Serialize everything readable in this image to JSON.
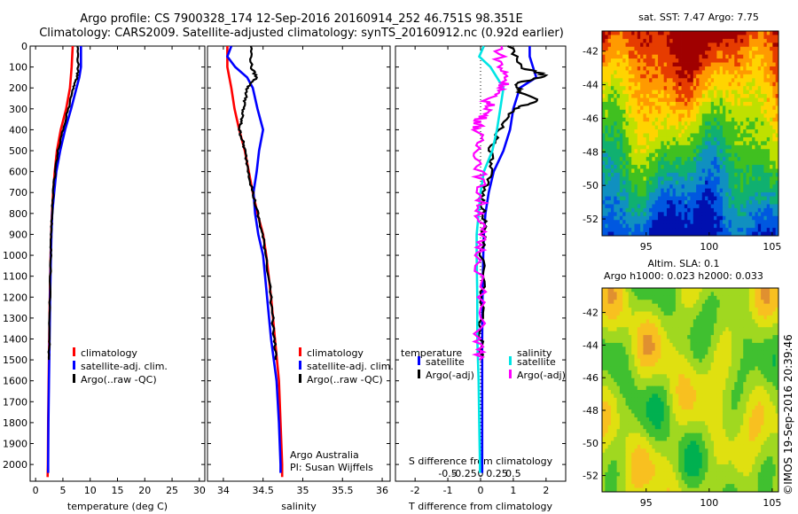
{
  "header": {
    "line1": "Argo profile: CS 7900328_174 12-Sep-2016 20160914_252 46.751S 98.351E",
    "line2": "Climatology: CARS2009. Satellite-adjusted climatology: synTS_20160912.nc (0.92d earlier)"
  },
  "colors": {
    "climatology": "#ff0000",
    "satellite": "#0000ff",
    "argo": "#000000",
    "salinity_sat": "#00e5e5",
    "salinity_argo": "#ff00ff"
  },
  "chart_data": [
    {
      "id": "temperature",
      "type": "line",
      "xlabel": "temperature (deg C)",
      "ylabel": "",
      "xlim": [
        -1,
        31
      ],
      "ylim": [
        2080,
        0
      ],
      "xticks": [
        0,
        5,
        10,
        15,
        20,
        25,
        30
      ],
      "yticks": [
        0,
        100,
        200,
        300,
        400,
        500,
        600,
        700,
        800,
        900,
        1000,
        1100,
        1200,
        1300,
        1400,
        1500,
        1600,
        1700,
        1800,
        1900,
        2000
      ],
      "legend": {
        "position": "lower-middle",
        "entries": [
          "climatology",
          "satellite-adj. clim.",
          "Argo(..raw -QC)"
        ]
      },
      "series": [
        {
          "name": "climatology",
          "color": "#ff0000",
          "depth": [
            0,
            100,
            200,
            300,
            400,
            500,
            600,
            700,
            800,
            900,
            1000,
            1200,
            1400,
            1600,
            1800,
            2000,
            2060
          ],
          "values": [
            6.8,
            6.6,
            6.3,
            5.6,
            4.6,
            3.9,
            3.5,
            3.2,
            3.0,
            2.85,
            2.75,
            2.6,
            2.5,
            2.4,
            2.3,
            2.25,
            2.2
          ]
        },
        {
          "name": "satellite-adj. clim.",
          "color": "#0000ff",
          "depth": [
            0,
            100,
            150,
            200,
            300,
            400,
            500,
            600,
            700,
            800,
            900,
            1000,
            1200,
            1400,
            1600,
            1800,
            2000,
            2040
          ],
          "values": [
            8.3,
            8.3,
            8.0,
            7.5,
            6.5,
            5.4,
            4.5,
            3.8,
            3.4,
            3.05,
            2.9,
            2.8,
            2.65,
            2.55,
            2.45,
            2.35,
            2.3,
            2.3
          ]
        },
        {
          "name": "Argo(..raw -QC)",
          "color": "#000000",
          "depth": [
            0,
            100,
            150,
            200,
            300,
            400,
            500,
            600,
            700,
            800,
            900,
            1000,
            1200,
            1400,
            1500
          ],
          "values": [
            7.7,
            7.8,
            7.6,
            6.9,
            6.0,
            5.0,
            4.1,
            3.6,
            3.2,
            3.0,
            2.9,
            2.8,
            2.6,
            2.5,
            2.45
          ]
        }
      ]
    },
    {
      "id": "salinity",
      "type": "line",
      "xlabel": "salinity",
      "ylabel": "",
      "xlim": [
        33.8,
        36.1
      ],
      "ylim": [
        2080,
        0
      ],
      "xticks": [
        34,
        34.5,
        35,
        35.5,
        36
      ],
      "xtick_labels": [
        "34",
        "34.5",
        "35",
        "35.5",
        "36"
      ],
      "legend": {
        "position": "lower-right",
        "entries": [
          "climatology",
          "satellite-adj. clim.",
          "Argo(..raw -QC)"
        ]
      },
      "annotations": [
        "Argo Australia",
        "PI: Susan Wijffels"
      ],
      "series": [
        {
          "name": "climatology",
          "color": "#ff0000",
          "depth": [
            0,
            100,
            200,
            300,
            400,
            500,
            600,
            700,
            800,
            900,
            1000,
            1200,
            1400,
            1600,
            1800,
            2000,
            2060
          ],
          "values": [
            34.05,
            34.05,
            34.1,
            34.14,
            34.2,
            34.27,
            34.32,
            34.37,
            34.43,
            34.5,
            34.54,
            34.6,
            34.65,
            34.7,
            34.72,
            34.74,
            34.74
          ]
        },
        {
          "name": "satellite-adj. clim.",
          "color": "#0000ff",
          "depth": [
            0,
            50,
            100,
            150,
            200,
            300,
            400,
            500,
            600,
            700,
            800,
            900,
            1000,
            1200,
            1400,
            1600,
            1800,
            2000,
            2040
          ],
          "values": [
            34.1,
            34.05,
            34.15,
            34.3,
            34.37,
            34.43,
            34.5,
            34.45,
            34.42,
            34.38,
            34.4,
            34.44,
            34.5,
            34.55,
            34.6,
            34.67,
            34.7,
            34.72,
            34.72
          ]
        },
        {
          "name": "Argo(..raw -QC)",
          "color": "#000000",
          "depth": [
            0,
            100,
            150,
            200,
            250,
            300,
            350,
            400,
            450,
            500,
            600,
            700,
            800,
            900,
            1000,
            1200,
            1400,
            1500
          ],
          "values": [
            34.35,
            34.35,
            34.42,
            34.3,
            34.28,
            34.25,
            34.23,
            34.2,
            34.24,
            34.27,
            34.32,
            34.37,
            34.43,
            34.49,
            34.54,
            34.6,
            34.64,
            34.66
          ]
        }
      ]
    },
    {
      "id": "difference",
      "type": "line",
      "xlabel": "T difference from climatology",
      "xlabel_top": "S difference from climatology",
      "xlim": [
        -2.6,
        2.6
      ],
      "ylim": [
        2080,
        0
      ],
      "xticks": [
        -2,
        -1,
        0,
        1,
        2
      ],
      "xtick_labels": [
        "-2",
        "-1",
        "0",
        "1",
        "2"
      ],
      "sticks": [
        -0.5,
        -0.25,
        0,
        0.25,
        0.5
      ],
      "stick_labels": [
        "-0.5",
        "-0.25",
        "0",
        "0.25",
        "0.5"
      ],
      "legend_groups": [
        {
          "title": "temperature",
          "entries": [
            "satellite",
            "Argo(-adj)"
          ]
        },
        {
          "title": "salinity",
          "entries": [
            "satellite",
            "Argo(-adj)"
          ]
        }
      ],
      "series": [
        {
          "name": "temperature satellite",
          "color": "#0000ff",
          "depth": [
            0,
            50,
            100,
            150,
            200,
            300,
            400,
            500,
            600,
            700,
            800,
            900,
            1000,
            1200,
            1400,
            1600,
            1800,
            2000,
            2040
          ],
          "values": [
            1.5,
            1.5,
            1.6,
            1.7,
            1.2,
            1.0,
            0.9,
            0.7,
            0.4,
            0.25,
            0.15,
            0.1,
            0.08,
            0.06,
            0.05,
            0.05,
            0.05,
            0.05,
            0.05
          ]
        },
        {
          "name": "temperature Argo(-adj)",
          "color": "#000000",
          "depth": [
            0,
            100,
            140,
            180,
            220,
            260,
            300,
            400,
            500,
            600,
            700,
            800,
            900,
            1000,
            1200,
            1400,
            1500
          ],
          "values": [
            0.9,
            1.2,
            2.0,
            1.1,
            1.2,
            1.8,
            1.0,
            0.6,
            0.3,
            0.3,
            0.05,
            0.1,
            0.1,
            0.05,
            0.05,
            0.0,
            0.0
          ]
        },
        {
          "name": "salinity satellite",
          "color": "#00e5e5",
          "depth": [
            0,
            50,
            100,
            200,
            300,
            400,
            500,
            600,
            700,
            800,
            900,
            1000,
            1200,
            1400,
            1600,
            1800,
            2000,
            2040
          ],
          "values": [
            0.05,
            -0.02,
            0.15,
            0.35,
            0.3,
            0.25,
            0.18,
            0.05,
            0.0,
            -0.03,
            -0.06,
            -0.06,
            -0.05,
            -0.05,
            -0.03,
            -0.02,
            -0.01,
            -0.01
          ]
        },
        {
          "name": "salinity Argo(-adj)",
          "color": "#ff00ff",
          "depth": [
            0,
            100,
            150,
            200,
            250,
            300,
            350,
            400,
            500,
            600,
            700,
            800,
            900,
            1000,
            1200,
            1400,
            1500
          ],
          "values": [
            0.3,
            0.3,
            0.4,
            0.35,
            0.1,
            0.15,
            0.0,
            -0.05,
            -0.03,
            0.0,
            0.0,
            0.0,
            0.0,
            0.0,
            0.0,
            -0.02,
            -0.02
          ]
        }
      ]
    },
    {
      "id": "sst_map",
      "type": "heatmap",
      "title": "sat. SST: 7.47 Argo: 7.75",
      "xticks": [
        95,
        100,
        105
      ],
      "yticks": [
        -42,
        -44,
        -46,
        -48,
        -50,
        -52
      ],
      "xlim": [
        91.5,
        105.5
      ],
      "ylim": [
        -53,
        -40.8
      ],
      "palette": [
        "#a00000",
        "#e63c00",
        "#ff9a00",
        "#ffd400",
        "#bfe000",
        "#40c020",
        "#10b070",
        "#1090c0",
        "#0058e0",
        "#0010b0"
      ]
    },
    {
      "id": "sla_map",
      "type": "heatmap",
      "title": "Altim. SLA: 0.1",
      "subtitle": "Argo h1000: 0.023 h2000: 0.033",
      "xticks": [
        95,
        100,
        105
      ],
      "yticks": [
        -42,
        -44,
        -46,
        -48,
        -50,
        -52
      ],
      "xlim": [
        91.5,
        105.5
      ],
      "ylim": [
        -53,
        -40.5
      ],
      "palette": [
        "#00b050",
        "#40c030",
        "#a0d820",
        "#e0e010",
        "#f8c020",
        "#e09030"
      ]
    }
  ],
  "side_label": "©IMOS 19-Sep-2016 20:39:46"
}
